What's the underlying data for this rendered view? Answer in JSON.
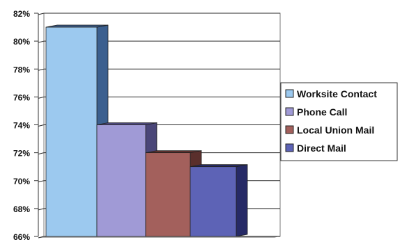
{
  "chart_data": {
    "type": "bar",
    "title": "",
    "xlabel": "",
    "ylabel": "",
    "ylim": [
      66,
      82
    ],
    "yticks": [
      66,
      68,
      70,
      72,
      74,
      76,
      78,
      80,
      82
    ],
    "ytick_labels": [
      "66%",
      "68%",
      "70%",
      "72%",
      "74%",
      "76%",
      "78%",
      "80%",
      "82%"
    ],
    "grid": true,
    "legend_position": "right",
    "categories": [
      "Worksite Contact",
      "Phone Call",
      "Local Union Mail",
      "Direct Mail"
    ],
    "values": [
      81,
      74,
      72,
      71
    ],
    "colors": [
      "#9cc9ef",
      "#a09ad6",
      "#a3605c",
      "#5d63b6"
    ],
    "side_colors": [
      "#3b5f8f",
      "#4a4678",
      "#5a2f2c",
      "#262a66"
    ]
  }
}
